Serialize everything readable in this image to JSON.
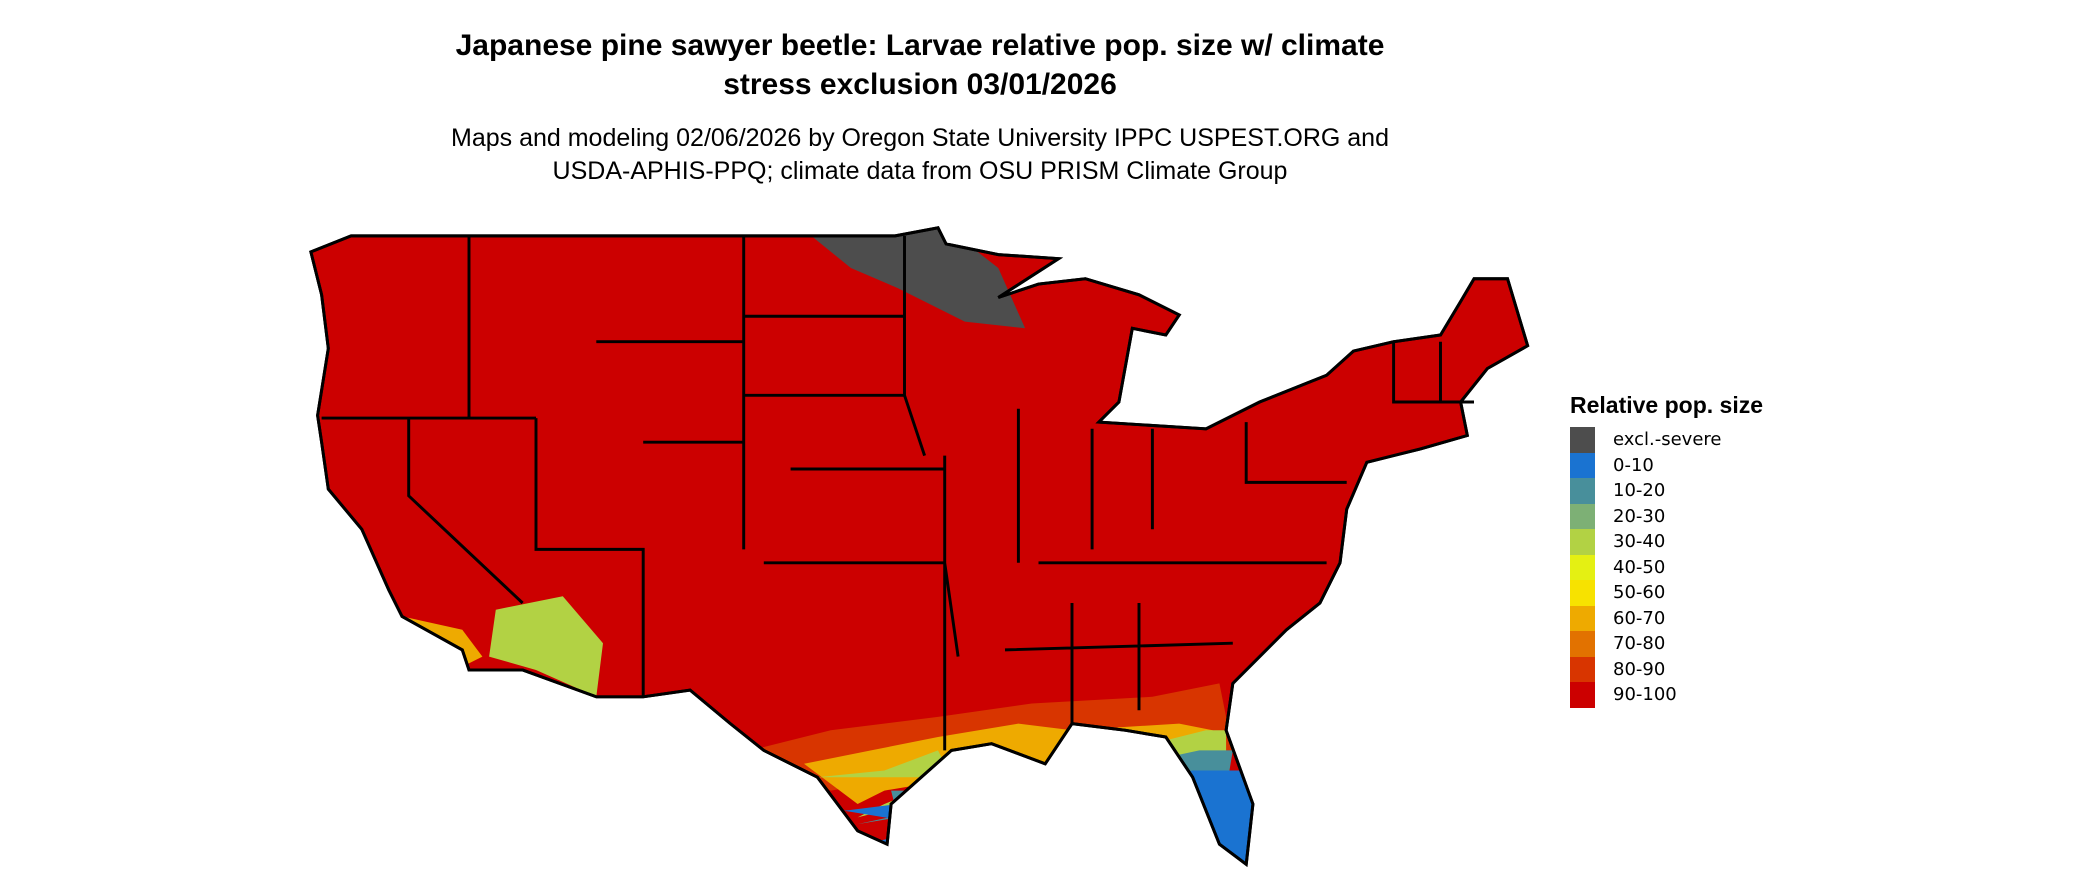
{
  "title": "Japanese pine sawyer beetle: Larvae relative pop. size w/ climate stress exclusion 03/01/2026",
  "title_lines": [
    "Japanese pine sawyer beetle: Larvae relative pop. size w/ climate",
    "stress exclusion 03/01/2026"
  ],
  "subtitle_lines": [
    "Maps and modeling 02/06/2026 by Oregon State University IPPC USPEST.ORG and",
    "USDA-APHIS-PPQ; climate data from OSU PRISM Climate Group"
  ],
  "legend": {
    "title": "Relative pop. size",
    "items": [
      {
        "label": "excl.-severe",
        "color": "#4d4d4d"
      },
      {
        "label": "0-10",
        "color": "#1a73d1"
      },
      {
        "label": "10-20",
        "color": "#488f9b"
      },
      {
        "label": "20-30",
        "color": "#7db075"
      },
      {
        "label": "30-40",
        "color": "#b2d244"
      },
      {
        "label": "40-50",
        "color": "#e4f013"
      },
      {
        "label": "50-60",
        "color": "#f7e200"
      },
      {
        "label": "60-70",
        "color": "#eeaa00"
      },
      {
        "label": "70-80",
        "color": "#e27200"
      },
      {
        "label": "80-90",
        "color": "#d83500"
      },
      {
        "label": "90-100",
        "color": "#cc0000"
      }
    ]
  }
}
